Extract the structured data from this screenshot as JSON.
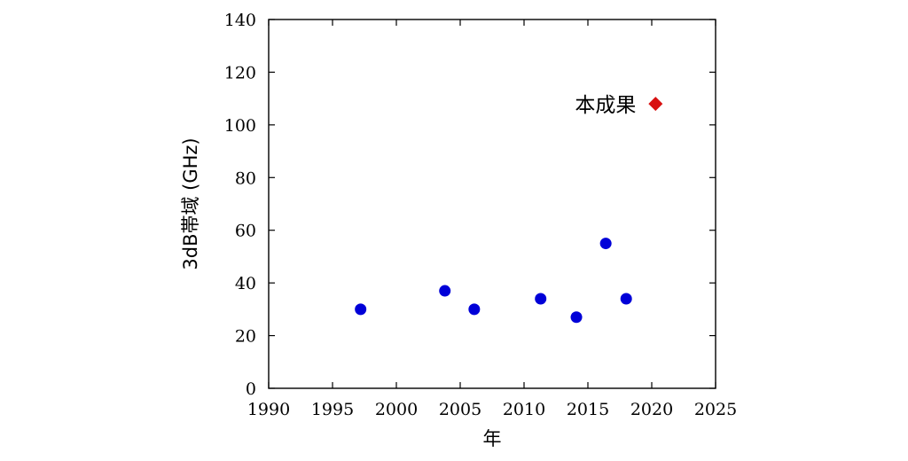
{
  "chart_data": {
    "type": "scatter",
    "title": "",
    "xlabel": "年",
    "ylabel": "3dB帯域 (GHz)",
    "xlim": [
      1990,
      2025
    ],
    "ylim": [
      0,
      140
    ],
    "xticks": [
      1990,
      1995,
      2000,
      2005,
      2010,
      2015,
      2020,
      2025
    ],
    "yticks": [
      0,
      20,
      40,
      60,
      80,
      100,
      120,
      140
    ],
    "grid": false,
    "legend": "none",
    "series": [
      {
        "marker": "circle",
        "color": "#0000d8",
        "points": [
          {
            "x": 1997.2,
            "y": 30
          },
          {
            "x": 2003.8,
            "y": 37
          },
          {
            "x": 2006.1,
            "y": 30
          },
          {
            "x": 2011.3,
            "y": 34
          },
          {
            "x": 2014.1,
            "y": 27
          },
          {
            "x": 2016.4,
            "y": 55
          },
          {
            "x": 2018.0,
            "y": 34
          }
        ]
      },
      {
        "marker": "diamond",
        "color": "#d81010",
        "points": [
          {
            "x": 2020.3,
            "y": 108
          }
        ]
      }
    ],
    "annotations": [
      {
        "text": "本成果",
        "x": 2020.3,
        "y": 108,
        "side": "left"
      }
    ]
  }
}
